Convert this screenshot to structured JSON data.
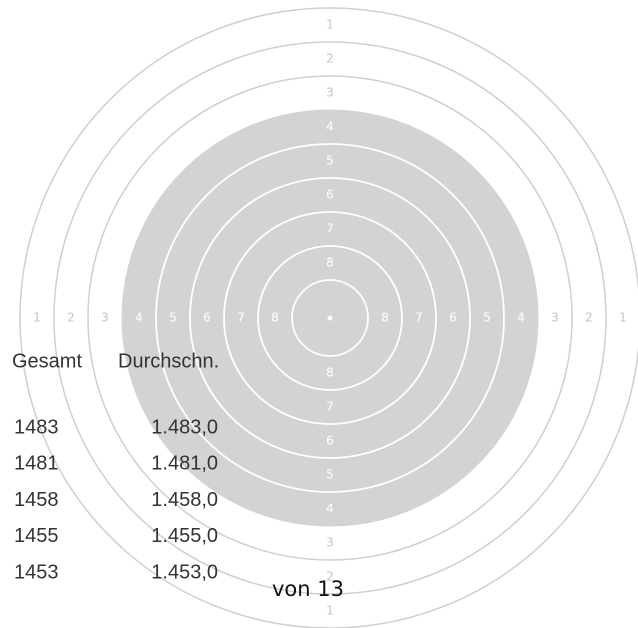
{
  "target": {
    "ring_labels": [
      1,
      2,
      3,
      4,
      5,
      6,
      7,
      8
    ]
  },
  "table": {
    "headers": [
      "Gesamt",
      "Durchschn."
    ],
    "rows": [
      [
        "1483",
        "1.483,0"
      ],
      [
        "1481",
        "1.481,0"
      ],
      [
        "1458",
        "1.458,0"
      ],
      [
        "1455",
        "1.455,0"
      ],
      [
        "1453",
        "1.453,0"
      ]
    ]
  },
  "footer": "von 13"
}
